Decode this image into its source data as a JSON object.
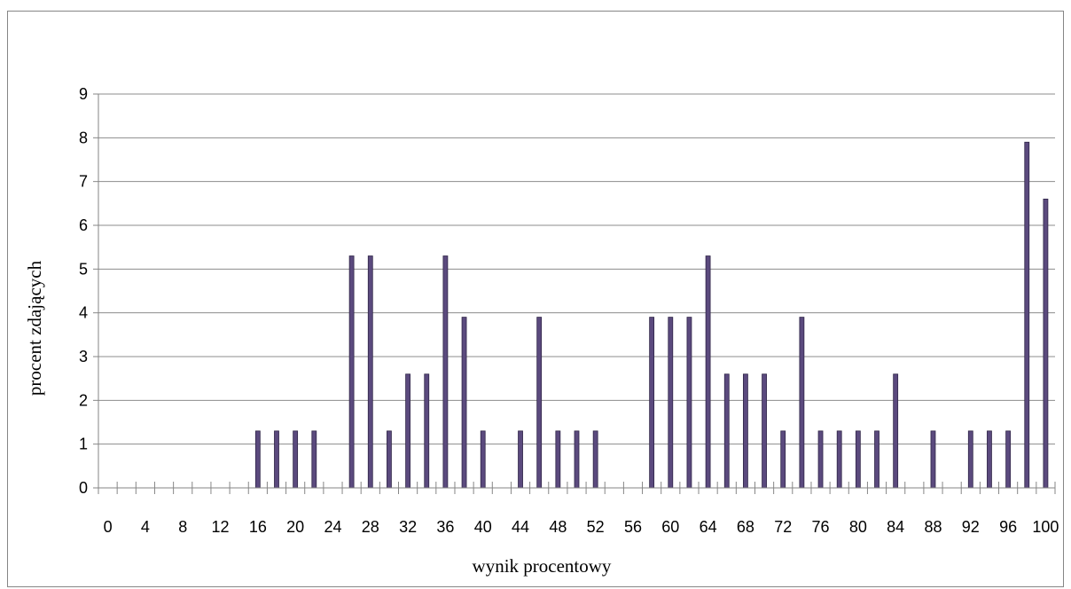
{
  "chart_data": {
    "type": "bar",
    "title": "",
    "xlabel": "wynik procentowy",
    "ylabel": "procent zdających",
    "ylim": [
      0,
      9
    ],
    "yticks": [
      0,
      1,
      2,
      3,
      4,
      5,
      6,
      7,
      8,
      9
    ],
    "grid": true,
    "legend": "none",
    "bar_color": "#5B4A7E",
    "bar_edge_color": "#2F2547",
    "x": [
      0,
      2,
      4,
      6,
      8,
      10,
      12,
      14,
      16,
      18,
      20,
      22,
      24,
      26,
      28,
      30,
      32,
      34,
      36,
      38,
      40,
      42,
      44,
      46,
      48,
      50,
      52,
      54,
      56,
      58,
      60,
      62,
      64,
      66,
      68,
      70,
      72,
      74,
      76,
      78,
      80,
      82,
      84,
      86,
      88,
      90,
      92,
      94,
      96,
      98,
      100
    ],
    "x_tick_labels": [
      "0",
      "4",
      "8",
      "12",
      "16",
      "20",
      "24",
      "28",
      "32",
      "36",
      "40",
      "44",
      "48",
      "52",
      "56",
      "60",
      "64",
      "68",
      "72",
      "76",
      "80",
      "84",
      "88",
      "92",
      "96",
      "100"
    ],
    "values": [
      0,
      0,
      0,
      0,
      0,
      0,
      0,
      0,
      1.3,
      1.3,
      1.3,
      1.3,
      0,
      5.3,
      5.3,
      1.3,
      2.6,
      2.6,
      5.3,
      3.9,
      1.3,
      0,
      1.3,
      3.9,
      1.3,
      1.3,
      1.3,
      0,
      0,
      3.9,
      3.9,
      3.9,
      5.3,
      2.6,
      2.6,
      2.6,
      1.3,
      3.9,
      1.3,
      1.3,
      1.3,
      1.3,
      2.6,
      0,
      1.3,
      0,
      1.3,
      1.3,
      1.3,
      7.9,
      6.6
    ]
  }
}
